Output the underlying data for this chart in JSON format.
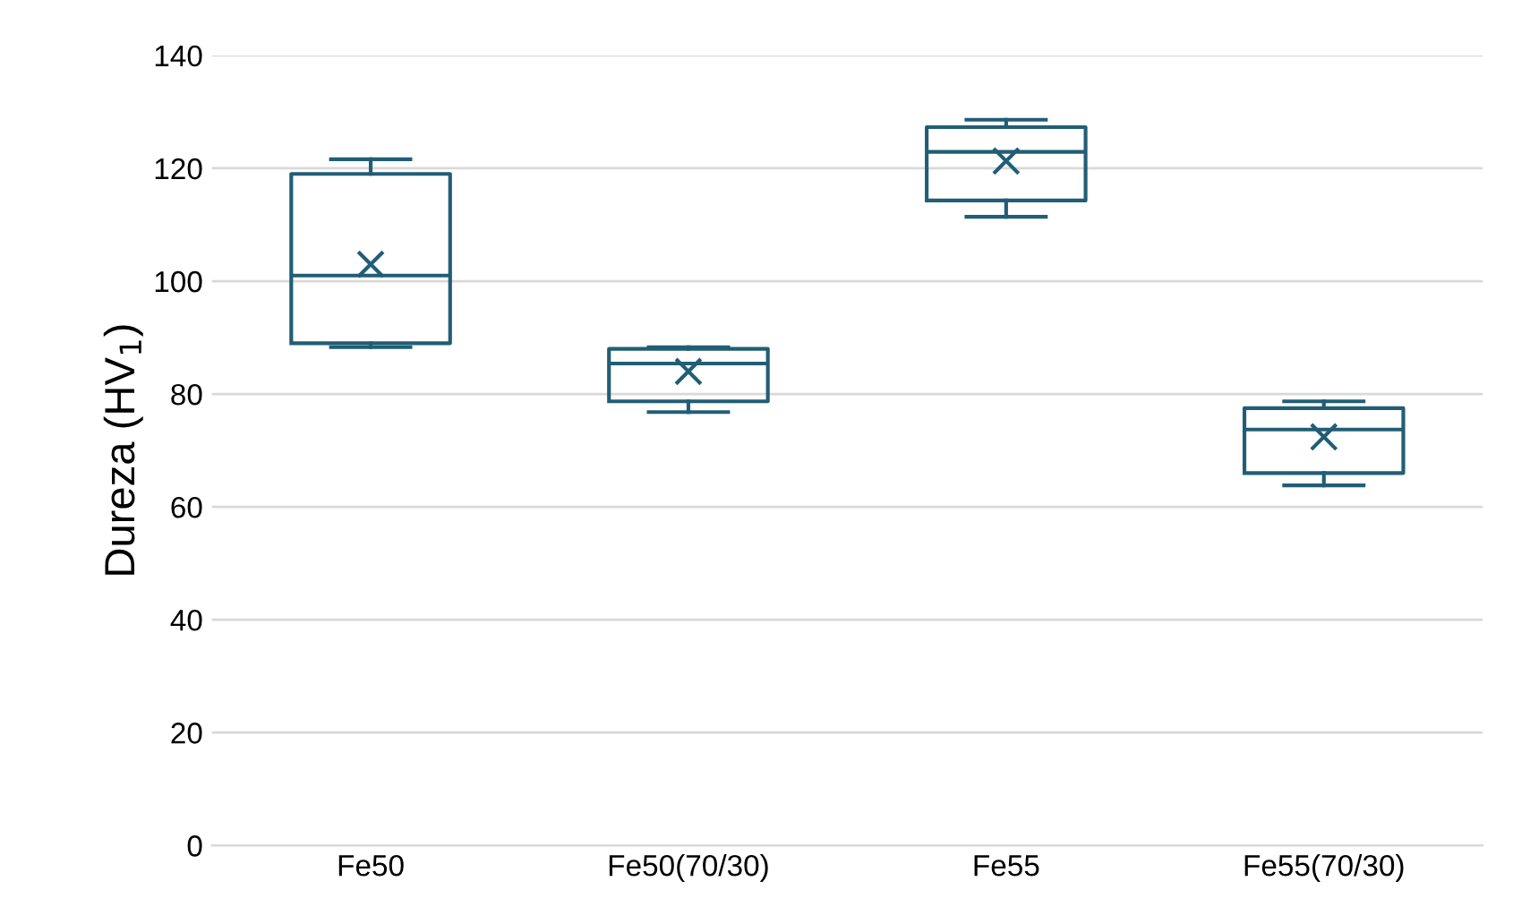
{
  "chart_data": {
    "type": "box",
    "ylabel": "Dureza (HV$_{1}$)",
    "categories": [
      "Fe50",
      "Fe50(70/30)",
      "Fe55",
      "Fe55(70/30)"
    ],
    "color": "#215e75",
    "ylim": [
      0,
      140
    ],
    "yticks": [
      0,
      20,
      40,
      60,
      80,
      100,
      120,
      140
    ],
    "grid": "y",
    "boxes": [
      {
        "low": 88.3,
        "q1": 89,
        "median": 101,
        "q3": 119,
        "high": 121.6,
        "mean": 103
      },
      {
        "low": 76.8,
        "q1": 78.7,
        "median": 85.4,
        "q3": 88,
        "high": 88.3,
        "mean": 84
      },
      {
        "low": 111.4,
        "q1": 114.3,
        "median": 122.9,
        "q3": 127.3,
        "high": 128.6,
        "mean": 121.3
      },
      {
        "low": 63.8,
        "q1": 66,
        "median": 73.7,
        "q3": 77.5,
        "high": 78.7,
        "mean": 72.4
      }
    ]
  }
}
